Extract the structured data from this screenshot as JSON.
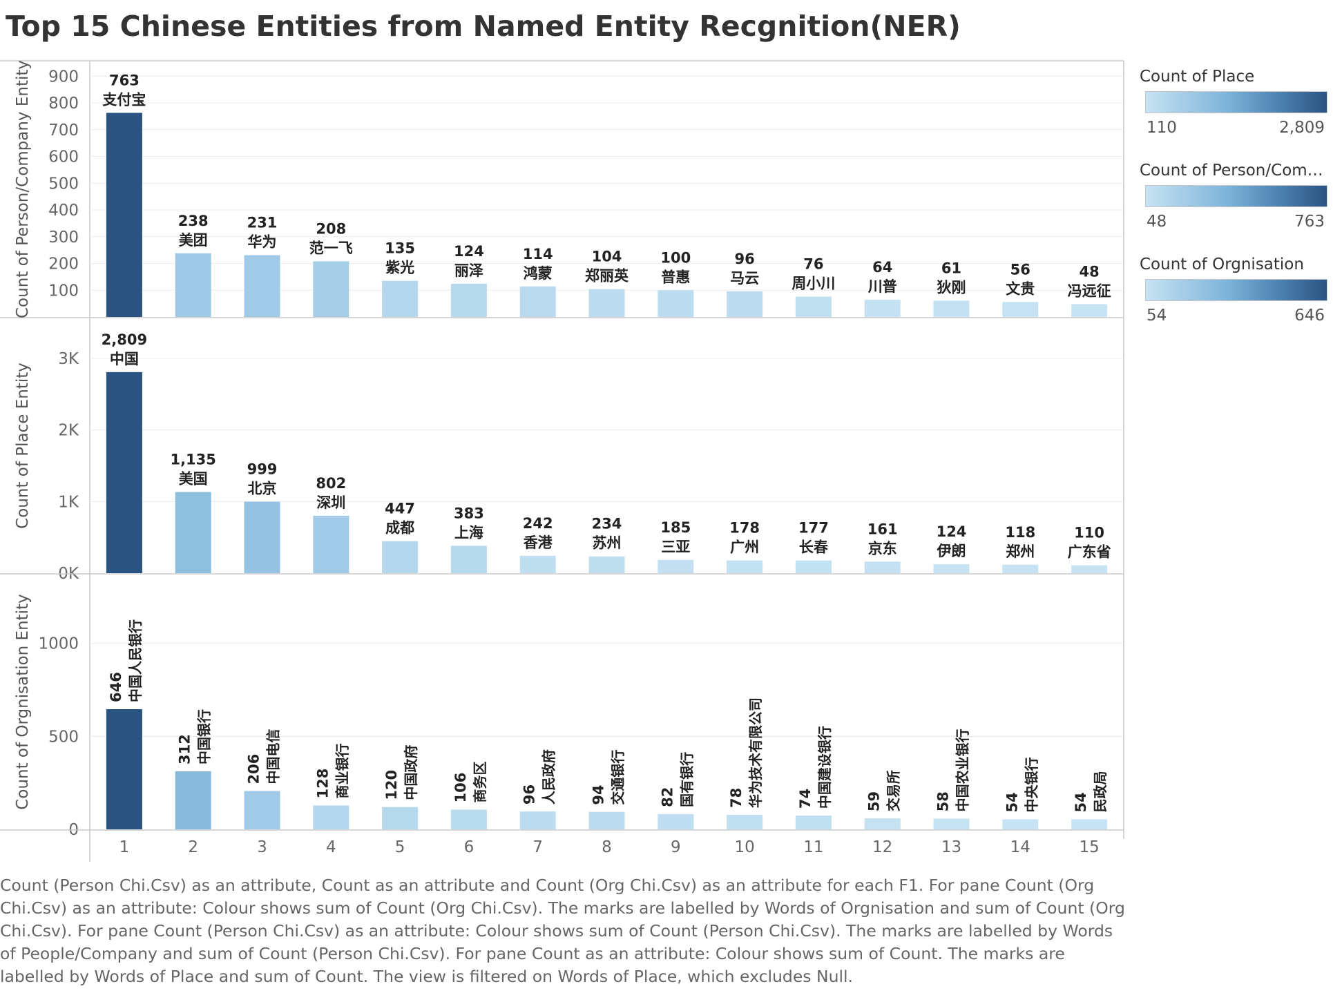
{
  "title": "Top 15 Chinese Entities from Named Entity Recgnition(NER)",
  "legend": [
    {
      "title": "Count of Place",
      "min": "110",
      "max": "2,809"
    },
    {
      "title": "Count of Person/Compa..",
      "min": "48",
      "max": "763"
    },
    {
      "title": "Count of Orgnisation",
      "min": "54",
      "max": "646"
    }
  ],
  "caption": "Count (Person Chi.Csv) as an attribute, Count as an attribute and Count (Org Chi.Csv) as an attribute for each F1.  For pane Count (Org Chi.Csv) as an attribute:  Colour shows sum of Count (Org Chi.Csv).  The marks are labelled by Words of Orgnisation and sum of Count (Org Chi.Csv).  For pane Count (Person Chi.Csv) as an attribute:  Colour shows sum of Count (Person Chi.Csv).  The marks are labelled by Words of People/Company and sum of Count (Person Chi.Csv).  For pane Count as an attribute:  Colour shows sum of Count.  The marks are labelled by Words of Place and sum of Count. The view is filtered on Words of Place, which excludes Null.",
  "colors": {
    "light": "#c6e3f3",
    "mid": "#7eb3d9",
    "dark": "#2a5381",
    "grid": "#ececec",
    "border": "#c8c8c8"
  },
  "chart_data": [
    {
      "type": "bar",
      "ylabel": "Count of Person/Company Entity",
      "categories": [
        "1",
        "2",
        "3",
        "4",
        "5",
        "6",
        "7",
        "8",
        "9",
        "10",
        "11",
        "12",
        "13",
        "14",
        "15"
      ],
      "values": [
        763,
        238,
        231,
        208,
        135,
        124,
        114,
        104,
        100,
        96,
        76,
        64,
        61,
        56,
        48
      ],
      "value_labels": [
        "763",
        "238",
        "231",
        "208",
        "135",
        "124",
        "114",
        "104",
        "100",
        "96",
        "76",
        "64",
        "61",
        "56",
        "48"
      ],
      "word_labels": [
        "支付宝",
        "美团",
        "华为",
        "范一飞",
        "紫光",
        "丽泽",
        "鸿蒙",
        "郑丽英",
        "普惠",
        "马云",
        "周小川",
        "川普",
        "狄刚",
        "文贵",
        "冯远征"
      ],
      "yticks": [
        100,
        200,
        300,
        400,
        500,
        600,
        700,
        800,
        900
      ],
      "ytick_labels": [
        "100",
        "200",
        "300",
        "400",
        "500",
        "600",
        "700",
        "800",
        "900"
      ],
      "ylim": [
        0,
        955
      ],
      "color_range": [
        48,
        763
      ]
    },
    {
      "type": "bar",
      "ylabel": "Count of Place Entity",
      "categories": [
        "1",
        "2",
        "3",
        "4",
        "5",
        "6",
        "7",
        "8",
        "9",
        "10",
        "11",
        "12",
        "13",
        "14",
        "15"
      ],
      "values": [
        2809,
        1135,
        999,
        802,
        447,
        383,
        242,
        234,
        185,
        178,
        177,
        161,
        124,
        118,
        110
      ],
      "value_labels": [
        "2,809",
        "1,135",
        "999",
        "802",
        "447",
        "383",
        "242",
        "234",
        "185",
        "178",
        "177",
        "161",
        "124",
        "118",
        "110"
      ],
      "word_labels": [
        "中国",
        "美国",
        "北京",
        "深圳",
        "成都",
        "上海",
        "香港",
        "苏州",
        "三亚",
        "广州",
        "长春",
        "京东",
        "伊朗",
        "郑州",
        "广东省"
      ],
      "yticks": [
        0,
        1000,
        2000,
        3000
      ],
      "ytick_labels": [
        "0K",
        "1K",
        "2K",
        "3K"
      ],
      "ylim": [
        0,
        3560
      ],
      "color_range": [
        110,
        2809
      ]
    },
    {
      "type": "bar",
      "ylabel": "Count of Orgnisation Entity",
      "categories": [
        "1",
        "2",
        "3",
        "4",
        "5",
        "6",
        "7",
        "8",
        "9",
        "10",
        "11",
        "12",
        "13",
        "14",
        "15"
      ],
      "values": [
        646,
        312,
        206,
        128,
        120,
        106,
        96,
        94,
        82,
        78,
        74,
        59,
        58,
        54,
        54
      ],
      "value_labels": [
        "646",
        "312",
        "206",
        "128",
        "120",
        "106",
        "96",
        "94",
        "82",
        "78",
        "74",
        "59",
        "58",
        "54",
        "54"
      ],
      "word_labels": [
        "中国人民银行",
        "中国银行",
        "中国电信",
        "商业银行",
        "中国政府",
        "商务区",
        "人民政府",
        "交通银行",
        "国有银行",
        "华为技术有限公司",
        "中国建设银行",
        "交易所",
        "中国农业银行",
        "中央银行",
        "民政局"
      ],
      "yticks": [
        0,
        500,
        1000
      ],
      "ytick_labels": [
        "0",
        "500",
        "1000"
      ],
      "ylim": [
        0,
        1370
      ],
      "color_range": [
        54,
        646
      ]
    }
  ]
}
